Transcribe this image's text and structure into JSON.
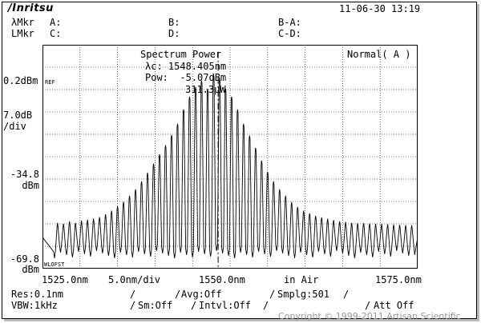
{
  "header": {
    "logo": "/Inritsu",
    "datetime": "11-06-30 13:19",
    "lambda_mkr_label": "λMkr",
    "level_mkr_label": "LMkr",
    "mkr_a": "A:",
    "mkr_b": "B:",
    "mkr_b_a": "B-A:",
    "mkr_c": "C:",
    "mkr_d": "D:",
    "mkr_c_d": "C-D:"
  },
  "analysis": {
    "title": "Spectrum Power",
    "lambda_c": "λc: 1548.405nm",
    "pow": "Pow:  -5.07dBm",
    "pow_w": "311.3μW",
    "mode": "Normal( A )"
  },
  "y_axis": {
    "ref": "0.2dBm",
    "ref_tag": "REF",
    "scale_top": "7.0dB",
    "scale_bottom": "/div",
    "mid_value": "-34.8",
    "mid_unit": "dBm",
    "bottom_value": "-69.8",
    "bottom_unit": "dBm",
    "wl_offset_tag": "WLOFST"
  },
  "x_axis": {
    "start": "1525.0nm",
    "span_div": "5.0nm/div",
    "center": "1550.0nm",
    "medium": "in Air",
    "stop": "1575.0nm"
  },
  "settings": {
    "res": "Res:0.1nm",
    "vbw": "VBW:1kHz",
    "avg": "Avg:Off",
    "sm": "Sm:Off",
    "intvl": "Intvl:Off",
    "smplg": "Smplg:501",
    "att": "Att Off"
  },
  "watermark": "Copyright © 1999-2011 Artisan Scientific",
  "chart_data": {
    "type": "line",
    "xlabel": "",
    "ylabel": "",
    "xlim": [
      1525.0,
      1575.0
    ],
    "ylim": [
      -69.8,
      0.2
    ],
    "y_per_div_db": 7.0,
    "center_nm": 1550.0,
    "span_per_div_nm": 5.0,
    "grid": true,
    "marker_line_nm": 1548.405,
    "peak_spacing_nm": 0.8,
    "series": [
      {
        "peaks_nm": [
          1527.0,
          1527.8,
          1528.6,
          1529.4,
          1530.2,
          1531.0,
          1531.8,
          1532.6,
          1533.4,
          1534.2,
          1535.0,
          1535.8,
          1536.6,
          1537.4,
          1538.2,
          1539.0,
          1539.8,
          1540.6,
          1541.4,
          1542.2,
          1543.0,
          1543.8,
          1544.6,
          1545.4,
          1546.2,
          1547.0,
          1547.8,
          1548.6,
          1549.4,
          1550.2,
          1551.0,
          1551.8,
          1552.6,
          1553.4,
          1554.2,
          1555.0,
          1555.8,
          1556.6,
          1557.4,
          1558.2,
          1559.0,
          1559.8,
          1560.6,
          1561.4,
          1562.2,
          1563.0,
          1563.8,
          1564.6,
          1565.4,
          1566.2,
          1567.0,
          1567.8,
          1568.6,
          1569.4,
          1570.2,
          1571.0,
          1571.8,
          1572.6,
          1573.4,
          1574.2
        ],
        "peaks_dbm": [
          -55.5,
          -55.8,
          -55.0,
          -55.5,
          -54.8,
          -54.5,
          -54.2,
          -53.7,
          -52.8,
          -51.7,
          -50.3,
          -48.9,
          -47.0,
          -45.0,
          -42.5,
          -39.8,
          -37.0,
          -34.0,
          -31.2,
          -28.0,
          -24.5,
          -20.0,
          -16.0,
          -13.0,
          -11.0,
          -13.5,
          -9.0,
          -10.5,
          -13.5,
          -16.0,
          -20.0,
          -24.5,
          -28.2,
          -32.0,
          -36.0,
          -39.5,
          -42.5,
          -45.0,
          -47.0,
          -49.0,
          -50.5,
          -51.7,
          -52.5,
          -53.3,
          -53.8,
          -54.2,
          -54.6,
          -55.0,
          -55.2,
          -55.5,
          -55.6,
          -55.6,
          -55.7,
          -55.8,
          -55.8,
          -55.9,
          -56.0,
          -56.1,
          -56.2,
          -56.2
        ],
        "valleys_dbm_range": [
          -66.5,
          -64.0
        ]
      }
    ]
  }
}
